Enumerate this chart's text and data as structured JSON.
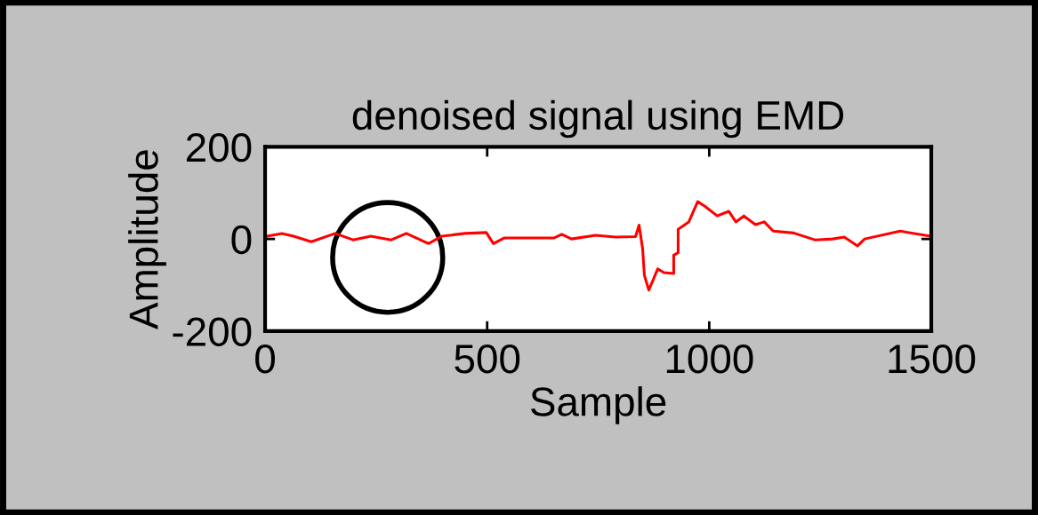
{
  "chart_data": {
    "type": "line",
    "title": "denoised signal using EMD",
    "xlabel": "Sample",
    "ylabel": "Amplitude",
    "series": [
      {
        "color": "#ff0000",
        "x": [
          0,
          4,
          38,
          64,
          104,
          158,
          198,
          238,
          284,
          318,
          368,
          398,
          450,
          498,
          514,
          538,
          650,
          668,
          690,
          744,
          790,
          834,
          842,
          850,
          854,
          864,
          884,
          898,
          920,
          920,
          930,
          930,
          954,
          974,
          990,
          1018,
          1044,
          1060,
          1078,
          1104,
          1124,
          1144,
          1190,
          1238,
          1278,
          1304,
          1334,
          1350,
          1430,
          1498
        ],
        "values": [
          2,
          6,
          12,
          6,
          -6,
          12,
          -2,
          6,
          -2,
          12,
          -10,
          6,
          12,
          14,
          -10,
          2,
          2,
          10,
          0,
          8,
          4,
          5,
          30,
          -21,
          -79,
          -111,
          -65,
          -73,
          -75,
          -35,
          -30,
          21,
          37,
          81,
          71,
          50,
          60,
          37,
          50,
          31,
          37,
          17,
          13,
          -2,
          0,
          4,
          -15,
          0,
          17,
          6
        ]
      }
    ],
    "xlim": [
      0,
      1500
    ],
    "xticks": [
      0,
      500,
      1000,
      1500
    ],
    "ylim": [
      -200,
      200
    ],
    "yticks": [
      -200,
      0,
      200
    ],
    "grid": false,
    "legend": false,
    "marker": "none",
    "line_style": "solid"
  }
}
